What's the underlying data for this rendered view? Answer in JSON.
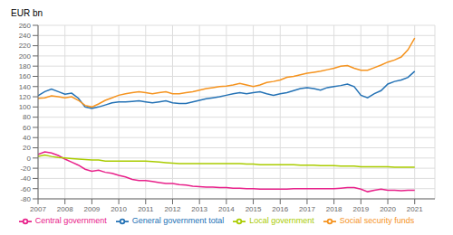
{
  "chart_data": {
    "type": "line",
    "ylabel": "EUR bn",
    "x": [
      2007,
      2007.25,
      2007.5,
      2007.75,
      2008,
      2008.25,
      2008.5,
      2008.75,
      2009,
      2009.25,
      2009.5,
      2009.75,
      2010,
      2010.25,
      2010.5,
      2010.75,
      2011,
      2011.25,
      2011.5,
      2011.75,
      2012,
      2012.25,
      2012.5,
      2012.75,
      2013,
      2013.25,
      2013.5,
      2013.75,
      2014,
      2014.25,
      2014.5,
      2014.75,
      2015,
      2015.25,
      2015.5,
      2015.75,
      2016,
      2016.25,
      2016.5,
      2016.75,
      2017,
      2017.25,
      2017.5,
      2017.75,
      2018,
      2018.25,
      2018.5,
      2018.75,
      2019,
      2019.25,
      2019.5,
      2019.75,
      2020,
      2020.25,
      2020.5,
      2020.75,
      2021
    ],
    "xlim": [
      2007,
      2021.75
    ],
    "xticks": [
      2007,
      2008,
      2009,
      2010,
      2011,
      2012,
      2013,
      2014,
      2015,
      2016,
      2017,
      2018,
      2019,
      2020,
      2021
    ],
    "ylim": [
      -80,
      260
    ],
    "yticks": [
      -80,
      -60,
      -40,
      -20,
      0,
      20,
      40,
      60,
      80,
      100,
      120,
      140,
      160,
      180,
      200,
      220,
      240,
      260
    ],
    "grid": true,
    "legend": "bottom",
    "series": [
      {
        "name": "General government total",
        "color": "#2472b5",
        "values": [
          122,
          130,
          135,
          130,
          125,
          127,
          117,
          100,
          97,
          100,
          104,
          108,
          110,
          110,
          111,
          112,
          110,
          108,
          110,
          112,
          108,
          107,
          107,
          110,
          113,
          116,
          118,
          120,
          123,
          126,
          128,
          126,
          128,
          130,
          126,
          123,
          126,
          128,
          132,
          136,
          138,
          136,
          133,
          138,
          140,
          142,
          145,
          140,
          123,
          118,
          126,
          132,
          145,
          150,
          153,
          158,
          170
        ]
      },
      {
        "name": "Central government",
        "color": "#e8218a",
        "values": [
          7,
          12,
          10,
          5,
          -2,
          -8,
          -14,
          -22,
          -26,
          -24,
          -28,
          -30,
          -34,
          -37,
          -42,
          -44,
          -44,
          -46,
          -48,
          -50,
          -50,
          -52,
          -53,
          -55,
          -56,
          -57,
          -57,
          -58,
          -58,
          -59,
          -59,
          -60,
          -60,
          -61,
          -61,
          -61,
          -61,
          -61,
          -60,
          -60,
          -60,
          -60,
          -60,
          -60,
          -60,
          -59,
          -58,
          -58,
          -61,
          -66,
          -63,
          -61,
          -63,
          -63,
          -64,
          -63,
          -63
        ]
      },
      {
        "name": "Local government",
        "color": "#aacc00",
        "values": [
          3,
          6,
          3,
          1,
          0,
          -1,
          -2,
          -3,
          -4,
          -4,
          -6,
          -6,
          -6,
          -6,
          -6,
          -6,
          -6,
          -7,
          -8,
          -9,
          -10,
          -11,
          -11,
          -11,
          -11,
          -11,
          -11,
          -11,
          -11,
          -11,
          -11,
          -12,
          -12,
          -13,
          -13,
          -13,
          -13,
          -13,
          -13,
          -14,
          -14,
          -14,
          -15,
          -15,
          -15,
          -16,
          -16,
          -16,
          -17,
          -17,
          -17,
          -17,
          -17,
          -18,
          -18,
          -18,
          -18
        ]
      },
      {
        "name": "Social security funds",
        "color": "#f5931e",
        "values": [
          117,
          118,
          122,
          120,
          118,
          120,
          113,
          103,
          100,
          106,
          113,
          118,
          123,
          126,
          128,
          130,
          128,
          126,
          128,
          130,
          126,
          126,
          128,
          130,
          133,
          136,
          138,
          140,
          141,
          143,
          146,
          143,
          140,
          143,
          148,
          150,
          153,
          158,
          160,
          163,
          166,
          168,
          170,
          173,
          176,
          180,
          181,
          176,
          172,
          172,
          177,
          182,
          188,
          192,
          198,
          212,
          235
        ]
      }
    ]
  }
}
